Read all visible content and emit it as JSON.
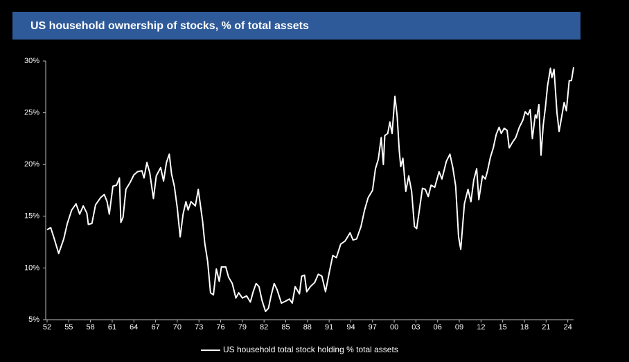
{
  "chart_data": {
    "type": "line",
    "title": "US household ownership of stocks, % of total assets",
    "x": [
      1952.0,
      1952.5,
      1953.0,
      1953.6,
      1954.3,
      1954.8,
      1955.4,
      1956.0,
      1956.5,
      1957.0,
      1957.5,
      1957.7,
      1958.2,
      1958.7,
      1959.4,
      1959.9,
      1960.3,
      1960.6,
      1961.1,
      1961.6,
      1962.0,
      1962.2,
      1962.5,
      1962.9,
      1963.5,
      1964.0,
      1964.5,
      1965.1,
      1965.4,
      1965.8,
      1966.2,
      1966.7,
      1967.1,
      1967.7,
      1968.1,
      1968.5,
      1968.9,
      1969.2,
      1969.6,
      1970.0,
      1970.4,
      1970.8,
      1971.2,
      1971.5,
      1971.9,
      1972.5,
      1972.9,
      1973.5,
      1973.8,
      1974.2,
      1974.6,
      1975.0,
      1975.4,
      1975.8,
      1976.1,
      1976.7,
      1977.1,
      1977.6,
      1978.1,
      1978.5,
      1979.0,
      1979.6,
      1980.1,
      1980.5,
      1980.9,
      1981.3,
      1981.7,
      1982.2,
      1982.6,
      1983.0,
      1983.4,
      1983.8,
      1984.4,
      1985.0,
      1985.5,
      1985.9,
      1986.3,
      1986.9,
      1987.2,
      1987.6,
      1987.9,
      1988.4,
      1989.0,
      1989.5,
      1990.0,
      1990.5,
      1991.0,
      1991.5,
      1992.0,
      1992.6,
      1993.2,
      1993.9,
      1994.3,
      1994.8,
      1995.4,
      1995.9,
      1996.4,
      1997.0,
      1997.4,
      1997.8,
      1998.2,
      1998.5,
      1998.7,
      1999.1,
      1999.4,
      1999.7,
      2000.1,
      2000.4,
      2000.7,
      2000.9,
      2001.2,
      2001.6,
      2002.0,
      2002.4,
      2002.8,
      2003.1,
      2003.5,
      2003.9,
      2004.3,
      2004.7,
      2005.1,
      2005.6,
      2006.2,
      2006.6,
      2007.2,
      2007.7,
      2008.1,
      2008.5,
      2008.9,
      2009.2,
      2009.7,
      2010.2,
      2010.6,
      2011.0,
      2011.4,
      2011.7,
      2012.2,
      2012.6,
      2012.9,
      2013.3,
      2013.7,
      2014.1,
      2014.5,
      2014.8,
      2015.2,
      2015.6,
      2015.9,
      2016.4,
      2016.8,
      2017.3,
      2017.8,
      2018.1,
      2018.5,
      2018.8,
      2019.1,
      2019.5,
      2019.7,
      2020.0,
      2020.3,
      2020.6,
      2020.9,
      2021.2,
      2021.6,
      2021.8,
      2022.1,
      2022.5,
      2022.8,
      2023.2,
      2023.5,
      2023.8,
      2024.2,
      2024.5,
      2024.8
    ],
    "series": [
      {
        "name": "US household total stock holding % total assets",
        "color": "#ffffff",
        "values": [
          13.7,
          13.9,
          12.8,
          11.4,
          12.8,
          14.3,
          15.6,
          16.2,
          15.2,
          16.0,
          15.3,
          14.2,
          14.3,
          16.1,
          16.8,
          17.1,
          16.4,
          15.2,
          17.9,
          18.0,
          18.7,
          14.4,
          14.9,
          17.6,
          18.3,
          19.0,
          19.3,
          19.4,
          18.7,
          20.2,
          19.2,
          16.7,
          18.9,
          19.7,
          18.4,
          20.2,
          21.0,
          19.1,
          17.9,
          15.8,
          13.0,
          15.2,
          16.4,
          15.6,
          16.4,
          16.0,
          17.6,
          14.5,
          12.4,
          10.6,
          7.6,
          7.4,
          9.9,
          8.7,
          10.1,
          10.1,
          9.1,
          8.5,
          7.1,
          7.6,
          7.1,
          7.3,
          6.7,
          7.7,
          8.5,
          8.2,
          6.9,
          5.8,
          6.1,
          7.4,
          8.5,
          7.9,
          6.6,
          6.8,
          7.0,
          6.6,
          8.2,
          7.5,
          9.2,
          9.3,
          7.7,
          8.2,
          8.6,
          9.4,
          9.2,
          7.7,
          9.5,
          11.2,
          11.0,
          12.3,
          12.6,
          13.4,
          12.7,
          12.8,
          14.0,
          15.6,
          16.8,
          17.5,
          19.6,
          20.5,
          22.6,
          20.0,
          22.8,
          23.0,
          24.1,
          23.0,
          26.6,
          24.7,
          21.3,
          19.8,
          20.6,
          17.4,
          18.9,
          17.4,
          14.0,
          13.8,
          15.7,
          17.7,
          17.6,
          16.9,
          18.0,
          17.8,
          19.3,
          18.6,
          20.3,
          21.0,
          19.7,
          17.9,
          13.0,
          11.8,
          16.2,
          17.6,
          16.4,
          18.5,
          19.6,
          16.6,
          18.9,
          18.6,
          19.4,
          20.7,
          21.6,
          22.9,
          23.6,
          23.0,
          23.5,
          23.3,
          21.6,
          22.2,
          22.6,
          23.6,
          24.3,
          25.1,
          24.8,
          25.3,
          22.5,
          24.8,
          24.5,
          25.8,
          20.9,
          23.8,
          25.5,
          27.6,
          29.3,
          28.4,
          29.2,
          25.0,
          23.2,
          24.8,
          26.0,
          25.2,
          28.1,
          28.1,
          29.4
        ]
      }
    ],
    "xlim": [
      1952,
      2024.8
    ],
    "xticks": [
      {
        "value": 1952,
        "label": "52"
      },
      {
        "value": 1955,
        "label": "55"
      },
      {
        "value": 1958,
        "label": "58"
      },
      {
        "value": 1961,
        "label": "61"
      },
      {
        "value": 1964,
        "label": "64"
      },
      {
        "value": 1967,
        "label": "67"
      },
      {
        "value": 1970,
        "label": "70"
      },
      {
        "value": 1973,
        "label": "73"
      },
      {
        "value": 1976,
        "label": "76"
      },
      {
        "value": 1979,
        "label": "79"
      },
      {
        "value": 1982,
        "label": "82"
      },
      {
        "value": 1985,
        "label": "85"
      },
      {
        "value": 1988,
        "label": "88"
      },
      {
        "value": 1991,
        "label": "91"
      },
      {
        "value": 1994,
        "label": "94"
      },
      {
        "value": 1997,
        "label": "97"
      },
      {
        "value": 2000,
        "label": "00"
      },
      {
        "value": 2003,
        "label": "03"
      },
      {
        "value": 2006,
        "label": "06"
      },
      {
        "value": 2009,
        "label": "09"
      },
      {
        "value": 2012,
        "label": "12"
      },
      {
        "value": 2015,
        "label": "15"
      },
      {
        "value": 2018,
        "label": "18"
      },
      {
        "value": 2021,
        "label": "21"
      },
      {
        "value": 2024,
        "label": "24"
      }
    ],
    "ylim": [
      5,
      30
    ],
    "yticks": [
      {
        "value": 5,
        "label": "5%"
      },
      {
        "value": 10,
        "label": "10%"
      },
      {
        "value": 15,
        "label": "15%"
      },
      {
        "value": 20,
        "label": "20%"
      },
      {
        "value": 25,
        "label": "25%"
      },
      {
        "value": 30,
        "label": "30%"
      }
    ],
    "title_color": "#2e5a99"
  }
}
